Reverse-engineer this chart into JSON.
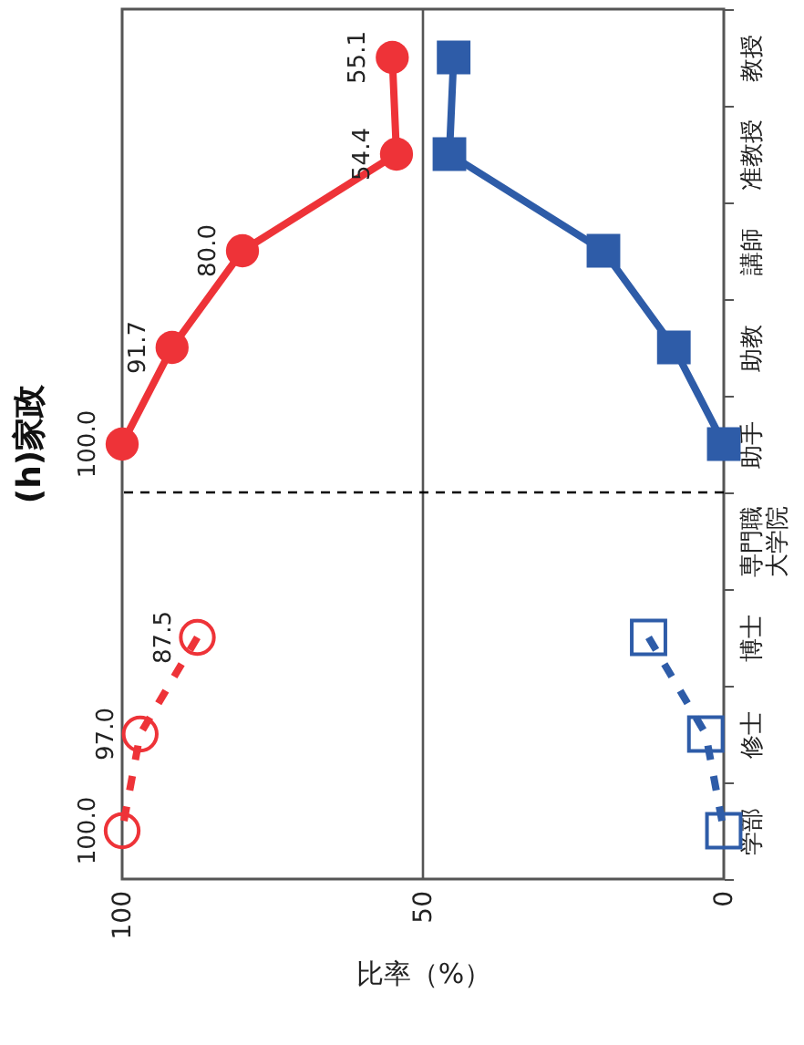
{
  "chart_data": {
    "type": "line",
    "orientation": "horizontal",
    "title": "(h)家政",
    "xlabel": "比率（%）",
    "categories": [
      "教授",
      "准教授",
      "講師",
      "助教",
      "助手",
      "専門職大学院",
      "博士",
      "修士",
      "学部"
    ],
    "xlim": [
      100,
      0
    ],
    "xticks": [
      100,
      50,
      0
    ],
    "grid": false,
    "ref_lines": [
      {
        "axis": "x",
        "value": 50,
        "color": "#555555",
        "line_style": "solid"
      },
      {
        "axis": "y",
        "value": "助手",
        "color": "#000000",
        "line_style": "dashed"
      }
    ],
    "series": [
      {
        "color": "#ee3338",
        "marker": "circle",
        "line_style": "solid",
        "values": [
          55.1,
          54.4,
          80.0,
          91.7,
          100.0,
          null,
          null,
          null,
          null
        ],
        "value_labels": [
          "55.1",
          "54.4",
          "80.0",
          "91.7",
          "100.0",
          null,
          null,
          null,
          null
        ]
      },
      {
        "color": "#ee3338",
        "marker": "circle",
        "line_style": "dashed",
        "values": [
          null,
          null,
          null,
          null,
          null,
          null,
          87.5,
          97.0,
          100.0
        ],
        "value_labels": [
          null,
          null,
          null,
          null,
          null,
          null,
          "87.5",
          "97.0",
          "100.0"
        ]
      },
      {
        "color": "#2e5ca8",
        "marker": "square",
        "line_style": "solid",
        "values": [
          44.9,
          45.6,
          20,
          8.3,
          0,
          null,
          null,
          null,
          null
        ]
      },
      {
        "color": "#2e5ca8",
        "marker": "square",
        "line_style": "dashed",
        "values": [
          null,
          null,
          null,
          null,
          null,
          null,
          12.5,
          3,
          0
        ]
      }
    ]
  }
}
